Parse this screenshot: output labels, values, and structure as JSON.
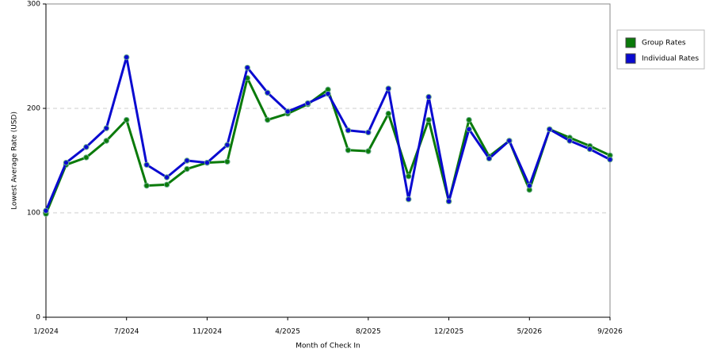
{
  "chart_data": {
    "type": "line",
    "x_label": "Month of Check In",
    "y_label": "Lowest Average Rate (USD)",
    "categories": [
      "1/2024",
      null,
      null,
      null,
      "7/2024",
      null,
      null,
      null,
      "11/2024",
      null,
      null,
      null,
      "4/2025",
      null,
      null,
      null,
      "8/2025",
      null,
      null,
      null,
      "12/2025",
      null,
      null,
      null,
      "5/2026",
      null,
      null,
      null,
      "9/2026"
    ],
    "series": [
      {
        "name": "Group Rates",
        "color": "#0a7a0a",
        "values": [
          99,
          146,
          153,
          169,
          189,
          126,
          127,
          142,
          148,
          149,
          229,
          189,
          195,
          204,
          218,
          160,
          159,
          195,
          135,
          189,
          111,
          189,
          154,
          169,
          122,
          180,
          172,
          164,
          155
        ]
      },
      {
        "name": "Individual Rates",
        "color": "#0a0ad0",
        "values": [
          102,
          148,
          163,
          181,
          249,
          146,
          134,
          150,
          148,
          165,
          239,
          215,
          197,
          205,
          214,
          179,
          177,
          219,
          113,
          211,
          111,
          180,
          152,
          169,
          126,
          180,
          169,
          161,
          151
        ]
      }
    ],
    "ylim": [
      0,
      300
    ],
    "yticks": [
      0,
      100,
      200,
      300
    ],
    "grid": true
  }
}
